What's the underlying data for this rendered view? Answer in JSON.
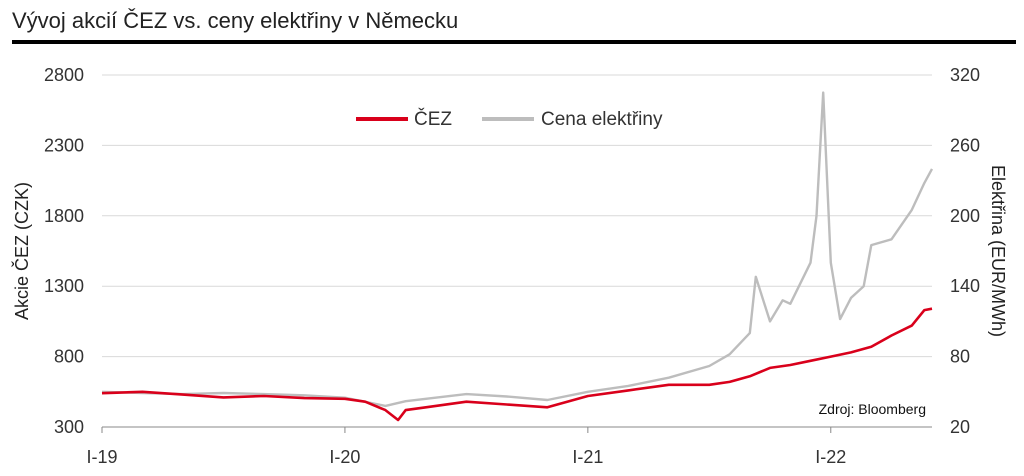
{
  "title": "Vývoj akcií ČEZ vs. ceny elektřiny v Německu",
  "chart_data": {
    "type": "line",
    "title": "Vývoj akcií ČEZ vs. ceny elektřiny v Německu",
    "source": "Zdroj: Bloomberg",
    "x_ticks": [
      "I-19",
      "I-20",
      "I-21",
      "I-22"
    ],
    "xlim": [
      "2019-01",
      "2022-06"
    ],
    "y_left": {
      "label": "Akcie ČEZ (CZK)",
      "ticks": [
        300,
        800,
        1300,
        1800,
        2300,
        2800
      ],
      "ylim": [
        300,
        2800
      ]
    },
    "y_right": {
      "label": "Elektřina (EUR/MWh)",
      "ticks": [
        20,
        80,
        140,
        200,
        260,
        320
      ],
      "ylim": [
        20,
        320
      ]
    },
    "legend_position": "top-center",
    "grid": "horizontal",
    "series": [
      {
        "name": "ČEZ",
        "axis": "left",
        "color": "#d9001b",
        "x": [
          "2019-01",
          "2019-03",
          "2019-05",
          "2019-07",
          "2019-09",
          "2019-11",
          "2020-01",
          "2020-02",
          "2020-03",
          "2020-03-20",
          "2020-04",
          "2020-05",
          "2020-07",
          "2020-09",
          "2020-11",
          "2021-01",
          "2021-03",
          "2021-05",
          "2021-07",
          "2021-08",
          "2021-09",
          "2021-10",
          "2021-11",
          "2021-12",
          "2022-01",
          "2022-02",
          "2022-03",
          "2022-04",
          "2022-05",
          "2022-05-20",
          "2022-06"
        ],
        "y": [
          540,
          550,
          530,
          510,
          520,
          505,
          500,
          480,
          420,
          350,
          420,
          440,
          480,
          460,
          440,
          520,
          560,
          600,
          600,
          620,
          660,
          720,
          740,
          770,
          800,
          830,
          870,
          950,
          1020,
          1130,
          1140
        ]
      },
      {
        "name": "Cena elektřiny",
        "axis": "right",
        "color": "#bdbdbd",
        "x": [
          "2019-01",
          "2019-03",
          "2019-05",
          "2019-07",
          "2019-09",
          "2019-11",
          "2020-01",
          "2020-03",
          "2020-04",
          "2020-05",
          "2020-07",
          "2020-09",
          "2020-11",
          "2021-01",
          "2021-03",
          "2021-05",
          "2021-07",
          "2021-08",
          "2021-09",
          "2021-09-10",
          "2021-10",
          "2021-10-20",
          "2021-11",
          "2021-12",
          "2021-12-10",
          "2021-12-20",
          "2022-01",
          "2022-01-15",
          "2022-02",
          "2022-02-20",
          "2022-03",
          "2022-04",
          "2022-05",
          "2022-05-20",
          "2022-06"
        ],
        "y": [
          50,
          49,
          48,
          49,
          48,
          47,
          45,
          38,
          42,
          44,
          48,
          46,
          43,
          50,
          55,
          62,
          72,
          82,
          100,
          148,
          110,
          128,
          125,
          160,
          200,
          305,
          160,
          112,
          130,
          140,
          175,
          180,
          205,
          228,
          240
        ]
      }
    ]
  }
}
